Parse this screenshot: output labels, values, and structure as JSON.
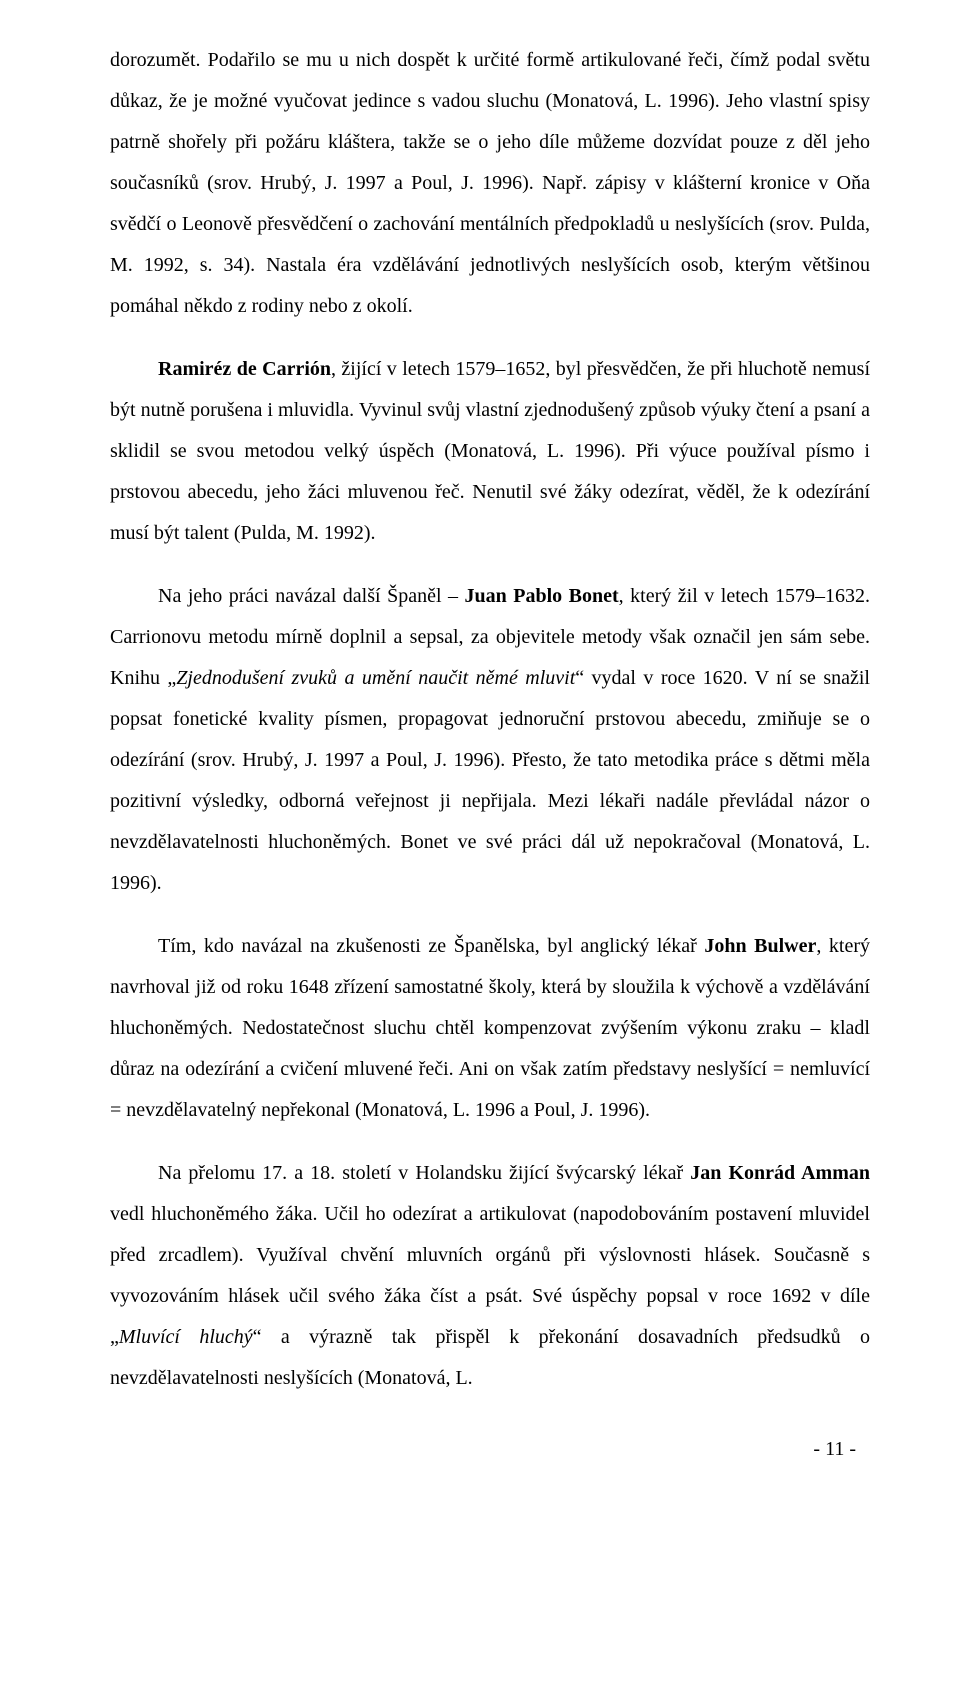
{
  "page": {
    "paragraphs": [
      {
        "indent": false,
        "segments": [
          {
            "text": "dorozumět. Podařilo se mu u nich dospět k určité formě artikulované řeči, čímž podal světu důkaz, že je možné vyučovat jedince s vadou sluchu (Monatová, L. 1996). Jeho vlastní spisy patrně shořely při požáru kláštera, takže se o jeho díle můžeme dozvídat pouze z děl jeho současníků (srov. Hrubý, J. 1997 a Poul, J. 1996). Např. zápisy v klášterní kronice v Oňa svědčí o Leonově přesvědčení o zachování mentálních předpokladů u neslyšících (srov. Pulda, M. 1992, s. 34). Nastala éra vzdělávání jednotlivých neslyšících osob, kterým většinou pomáhal někdo z rodiny nebo z okolí."
          }
        ]
      },
      {
        "indent": true,
        "segments": [
          {
            "text": "Ramiréz de Carrión",
            "bold": true
          },
          {
            "text": ", žijící v letech 1579–1652, byl přesvědčen, že při hluchotě nemusí být nutně porušena i mluvidla. Vyvinul svůj vlastní zjednodušený způsob výuky čtení a psaní a sklidil se svou metodou velký úspěch (Monatová, L. 1996). Při výuce používal písmo i prstovou abecedu, jeho žáci mluvenou řeč. Nenutil své žáky odezírat, věděl, že k odezírání musí být talent (Pulda, M. 1992)."
          }
        ]
      },
      {
        "indent": true,
        "segments": [
          {
            "text": "Na jeho práci navázal další Španěl – "
          },
          {
            "text": "Juan Pablo Bonet",
            "bold": true
          },
          {
            "text": ", který žil v letech 1579–1632. Carrionovu metodu mírně doplnil a sepsal, za objevitele metody však označil jen sám sebe. Knihu „"
          },
          {
            "text": "Zjednodušení zvuků a umění naučit němé mluvit",
            "italic": true
          },
          {
            "text": "“ vydal v roce 1620. V ní se snažil popsat fonetické kvality písmen, propagovat jednoruční prstovou abecedu, zmiňuje se o odezírání (srov. Hrubý, J. 1997 a Poul, J. 1996). Přesto, že tato metodika práce s dětmi měla pozitivní výsledky, odborná veřejnost ji nepřijala. Mezi lékaři nadále převládal názor o nevzdělavatelnosti hluchoněmých. Bonet ve své práci dál už nepokračoval (Monatová, L. 1996)."
          }
        ]
      },
      {
        "indent": true,
        "segments": [
          {
            "text": "Tím, kdo navázal na zkušenosti ze Španělska, byl anglický lékař "
          },
          {
            "text": "John Bulwer",
            "bold": true
          },
          {
            "text": ", který navrhoval již od roku 1648 zřízení samostatné školy, která by sloužila k výchově a vzdělávání hluchoněmých. Nedostatečnost sluchu chtěl kompenzovat zvýšením výkonu zraku – kladl důraz na odezírání a cvičení mluvené řeči. Ani on však zatím představy neslyšící = nemluvící = nevzdělavatelný nepřekonal (Monatová, L. 1996 a Poul, J. 1996)."
          }
        ]
      },
      {
        "indent": true,
        "segments": [
          {
            "text": "Na přelomu 17. a 18. století v Holandsku žijící švýcarský lékař "
          },
          {
            "text": "Jan Konrád Amman",
            "bold": true
          },
          {
            "text": " vedl hluchoněmého žáka. Učil ho odezírat a artikulovat (napodobováním postavení mluvidel před zrcadlem). Využíval chvění mluvních orgánů při výslovnosti hlásek. Současně s vyvozováním hlásek učil svého žáka číst a psát. Své úspěchy popsal v roce 1692 v díle „"
          },
          {
            "text": "Mluvící hluchý",
            "italic": true
          },
          {
            "text": "“ a výrazně tak přispěl k překonání dosavadních předsudků o nevzdělavatelnosti neslyšících (Monatová, L."
          }
        ]
      }
    ],
    "page_number": "- 11 -",
    "font_family": "Times New Roman",
    "font_size_pt": 15,
    "line_height": 2.05,
    "text_color": "#000000",
    "background_color": "#ffffff"
  }
}
